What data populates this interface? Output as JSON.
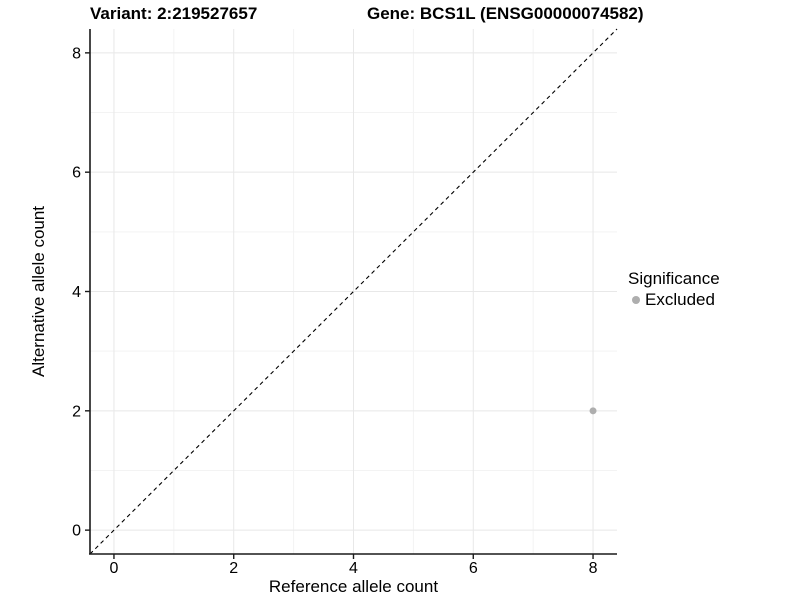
{
  "chart_data": {
    "type": "scatter",
    "titles": [
      "Variant: 2:219527657",
      "Gene: BCS1L (ENSG00000074582)"
    ],
    "xlabel": "Reference allele count",
    "ylabel": "Alternative allele count",
    "xlim": [
      -0.4,
      8.4
    ],
    "ylim": [
      -0.4,
      8.4
    ],
    "x_ticks": [
      0,
      2,
      4,
      6,
      8
    ],
    "y_ticks": [
      0,
      2,
      4,
      6,
      8
    ],
    "x_minor_ticks": [
      1,
      3,
      5,
      7
    ],
    "y_minor_ticks": [
      1,
      3,
      5,
      7
    ],
    "grid": {
      "major_color": "#e8e8e8",
      "minor_color": "#f3f3f3"
    },
    "axis_color": "#1a1a1a",
    "reference_line": {
      "type": "identity",
      "linestyle": "dashed",
      "color": "#000000"
    },
    "series": [
      {
        "name": "Excluded",
        "color": "#aeaeae",
        "points": [
          {
            "x": 8,
            "y": 2
          }
        ]
      }
    ],
    "legend": {
      "title": "Significance",
      "position": "right",
      "entries": [
        {
          "label": "Excluded",
          "color": "#aeaeae"
        }
      ]
    }
  }
}
